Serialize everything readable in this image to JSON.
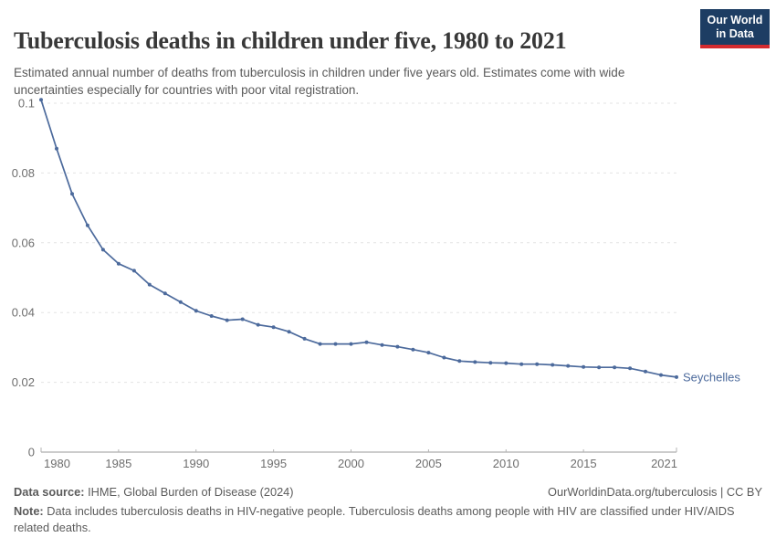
{
  "header": {
    "title": "Tuberculosis deaths in children under five, 1980 to 2021",
    "subtitle": "Estimated annual number of deaths from tuberculosis in children under five years old. Estimates come with wide uncertainties especially for countries with poor vital registration.",
    "logo": {
      "line1": "Our World",
      "line2": "in Data",
      "bg_color": "#1d3d63",
      "accent_color": "#d42b2f"
    }
  },
  "chart_data": {
    "type": "line",
    "title": "Tuberculosis deaths in children under five, 1980 to 2021",
    "xlabel": "",
    "ylabel": "",
    "xlim": [
      1980,
      2021
    ],
    "ylim": [
      0,
      0.1
    ],
    "x_ticks": [
      1980,
      1985,
      1990,
      1995,
      2000,
      2005,
      2010,
      2015,
      2021
    ],
    "y_ticks": [
      0,
      0.02,
      0.04,
      0.06,
      0.08,
      0.1
    ],
    "grid": "horizontal-dashed",
    "legend_position": "end-of-line-label",
    "axis_text_color": "#6e6e6e",
    "gridline_color": "#e3e3e3",
    "axis_line_color": "#9a9a9a",
    "series": [
      {
        "name": "Seychelles",
        "color": "#4c6a9c",
        "x": [
          1980,
          1981,
          1982,
          1983,
          1984,
          1985,
          1986,
          1987,
          1988,
          1989,
          1990,
          1991,
          1992,
          1993,
          1994,
          1995,
          1996,
          1997,
          1998,
          1999,
          2000,
          2001,
          2002,
          2003,
          2004,
          2005,
          2006,
          2007,
          2008,
          2009,
          2010,
          2011,
          2012,
          2013,
          2014,
          2015,
          2016,
          2017,
          2018,
          2019,
          2020,
          2021
        ],
        "y": [
          0.101,
          0.087,
          0.074,
          0.065,
          0.058,
          0.054,
          0.052,
          0.048,
          0.0455,
          0.043,
          0.0405,
          0.039,
          0.0378,
          0.0381,
          0.0365,
          0.0358,
          0.0345,
          0.0325,
          0.031,
          0.031,
          0.031,
          0.0315,
          0.0307,
          0.0302,
          0.0294,
          0.0285,
          0.0271,
          0.0261,
          0.0258,
          0.0256,
          0.0255,
          0.0252,
          0.0252,
          0.025,
          0.0247,
          0.0244,
          0.0243,
          0.0243,
          0.024,
          0.0231,
          0.0221,
          0.0215
        ]
      }
    ]
  },
  "footer": {
    "datasource_label": "Data source:",
    "datasource_value": " IHME, Global Burden of Disease (2024)",
    "link": "OurWorldinData.org/tuberculosis | CC BY",
    "note_label": "Note:",
    "note_value": " Data includes tuberculosis deaths in HIV-negative people. Tuberculosis deaths among people with HIV are classified under HIV/AIDS related deaths."
  }
}
